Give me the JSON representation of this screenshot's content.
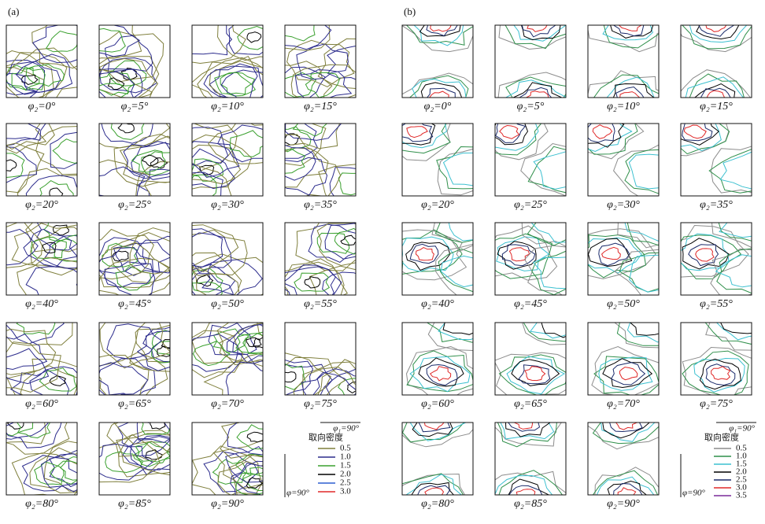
{
  "panels": [
    {
      "label": "(a)",
      "sections": [
        "φ₂=0°",
        "φ₂=5°",
        "φ₂=10°",
        "φ₂=15°",
        "φ₂=20°",
        "φ₂=25°",
        "φ₂=30°",
        "φ₂=35°",
        "φ₂=40°",
        "φ₂=45°",
        "φ₂=50°",
        "φ₂=55°",
        "φ₂=60°",
        "φ₂=65°",
        "φ₂=70°",
        "φ₂=75°",
        "φ₂=80°",
        "φ₂=85°",
        "φ₂=90°"
      ],
      "legend": {
        "title": "取向密度",
        "axis_top": "φ₁=90°",
        "axis_side": "φ=90°",
        "levels": [
          {
            "label": "0.5",
            "color": "#7f7f3c"
          },
          {
            "label": "1.0",
            "color": "#2b2b8c"
          },
          {
            "label": "1.5",
            "color": "#3aa02e"
          },
          {
            "label": "2.0",
            "color": "#000000"
          },
          {
            "label": "2.5",
            "color": "#2d5fd0"
          },
          {
            "label": "3.0",
            "color": "#e02828"
          }
        ]
      }
    },
    {
      "label": "(b)",
      "sections": [
        "φ₂=0°",
        "φ₂=5°",
        "φ₂=10°",
        "φ₂=15°",
        "φ₂=20°",
        "φ₂=25°",
        "φ₂=30°",
        "φ₂=35°",
        "φ₂=40°",
        "φ₂=45°",
        "φ₂=50°",
        "φ₂=55°",
        "φ₂=60°",
        "φ₂=65°",
        "φ₂=70°",
        "φ₂=75°",
        "φ₂=80°",
        "φ₂=85°",
        "φ₂=90°"
      ],
      "legend": {
        "title": "取向密度",
        "axis_top": "φ₁=90°",
        "axis_side": "φ=90°",
        "levels": [
          {
            "label": "0.5",
            "color": "#8c8c8c"
          },
          {
            "label": "1.0",
            "color": "#2f8f4a"
          },
          {
            "label": "1.5",
            "color": "#3cc0d0"
          },
          {
            "label": "2.0",
            "color": "#000000"
          },
          {
            "label": "2.5",
            "color": "#1a2a6a"
          },
          {
            "label": "3.0",
            "color": "#e02828"
          },
          {
            "label": "3.5",
            "color": "#7a2a9a"
          }
        ]
      }
    }
  ]
}
